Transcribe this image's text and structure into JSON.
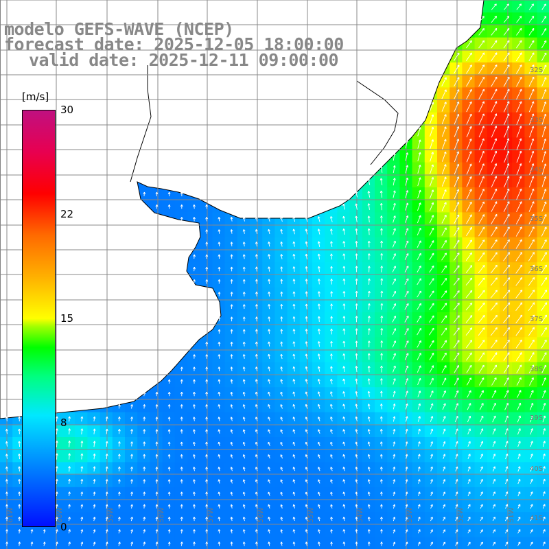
{
  "title": {
    "line1": "modelo GEFS-WAVE (NCEP)",
    "line2": "forecast date: 2025-12-05 18:00:00",
    "line3": "valid date: 2025-12-11 09:00:00"
  },
  "colorbar": {
    "units": "[m/s]",
    "ticks": [
      "30",
      "22",
      "15",
      "8",
      "0"
    ],
    "colors": [
      "#0010ff",
      "#0080ff",
      "#00e8ff",
      "#00ff80",
      "#00ff00",
      "#ffff00",
      "#ff6a00",
      "#ff0000",
      "#c01080"
    ]
  },
  "lon_labels": [
    "61W",
    "60W",
    "59W",
    "58W",
    "57W",
    "56W",
    "55W",
    "54W",
    "53W",
    "52W",
    "51W"
  ],
  "lat_labels": [
    "32S",
    "33S",
    "34S",
    "35S",
    "36S",
    "37S",
    "38S",
    "39S",
    "40S",
    "41S"
  ]
}
